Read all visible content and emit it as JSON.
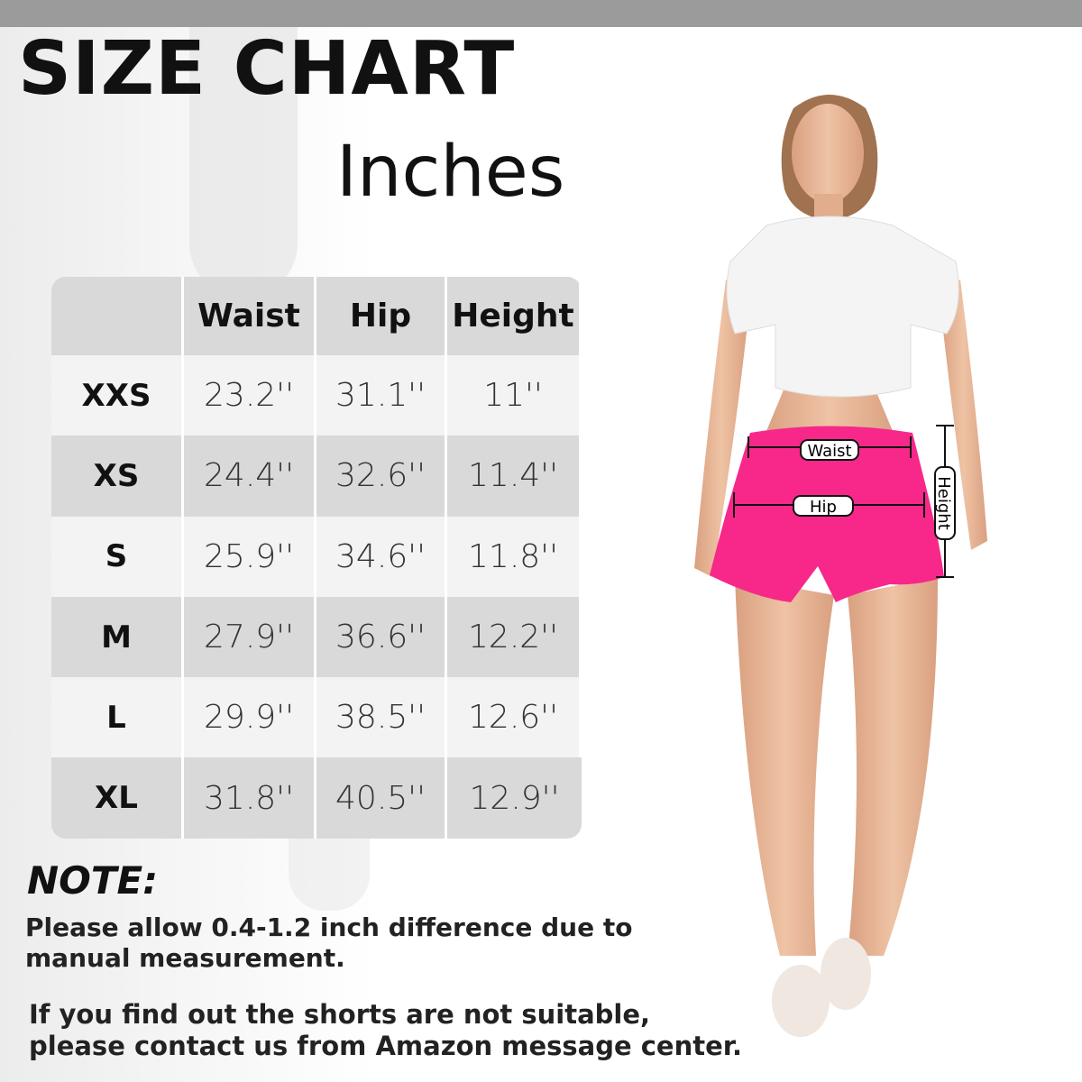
{
  "title": "SIZE CHART",
  "unit": "Inches",
  "table": {
    "headers": [
      "",
      "Waist",
      "Hip",
      "Height"
    ],
    "rows": [
      {
        "size": "XXS",
        "waist": "23.2''",
        "hip": "31.1''",
        "height": "11''"
      },
      {
        "size": "XS",
        "waist": "24.4''",
        "hip": "32.6''",
        "height": "11.4''"
      },
      {
        "size": "S",
        "waist": "25.9''",
        "hip": "34.6''",
        "height": "11.8''"
      },
      {
        "size": "M",
        "waist": "27.9''",
        "hip": "36.6''",
        "height": "12.2''"
      },
      {
        "size": "L",
        "waist": "29.9''",
        "hip": "38.5''",
        "height": "12.6''"
      },
      {
        "size": "XL",
        "waist": "31.8''",
        "hip": "40.5''",
        "height": "12.9''"
      }
    ]
  },
  "note": {
    "title": "NOTE:",
    "line1": "Please allow 0.4-1.2  inch difference due to manual measurement.",
    "line2": "If you find out the shorts are not suitable, please contact us from Amazon message center."
  },
  "figure": {
    "labels": {
      "waist": "Waist",
      "hip": "Hip",
      "height": "Height"
    },
    "colors": {
      "shorts": "#f7288a",
      "top": "#f4f4f4",
      "skin": "#e8b898"
    }
  }
}
